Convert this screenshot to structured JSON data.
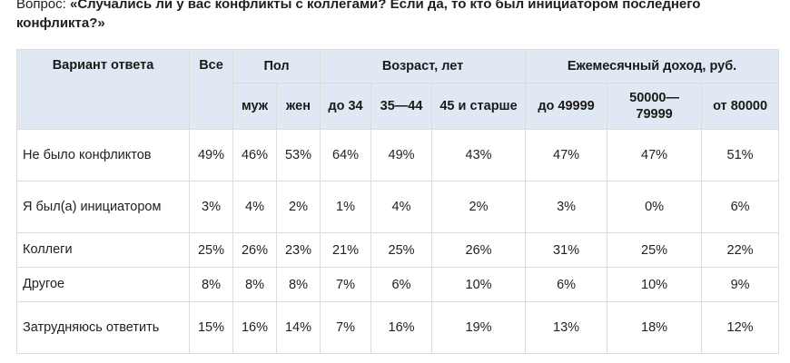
{
  "question": {
    "prefix": "Вопрос: ",
    "text": "«Случались ли у вас конфликты с коллегами? Если да, то кто был инициатором последнего конфликта?»"
  },
  "table": {
    "header": {
      "answer": "Вариант ответа",
      "all": "Все",
      "gender": "Пол",
      "age": "Возраст, лет",
      "income": "Ежемесячный доход, руб."
    },
    "subheaders": [
      "муж",
      "жен",
      "до 34",
      "35—44",
      "45 и старше",
      "до 49999",
      "50000—79999",
      "от 80000"
    ],
    "rows": [
      {
        "label": "Не было конфликтов",
        "values": [
          "49%",
          "46%",
          "53%",
          "64%",
          "49%",
          "43%",
          "47%",
          "47%",
          "51%"
        ]
      },
      {
        "label": "Я был(а) инициатором",
        "values": [
          "3%",
          "4%",
          "2%",
          "1%",
          "4%",
          "2%",
          "3%",
          "0%",
          "6%"
        ]
      },
      {
        "label": "Коллеги",
        "values": [
          "25%",
          "26%",
          "23%",
          "21%",
          "25%",
          "26%",
          "31%",
          "25%",
          "22%"
        ]
      },
      {
        "label": "Другое",
        "values": [
          "8%",
          "8%",
          "8%",
          "7%",
          "6%",
          "10%",
          "6%",
          "10%",
          "9%"
        ]
      },
      {
        "label": "Затрудняюсь ответить",
        "values": [
          "15%",
          "16%",
          "14%",
          "7%",
          "16%",
          "19%",
          "13%",
          "18%",
          "12%"
        ]
      }
    ]
  }
}
